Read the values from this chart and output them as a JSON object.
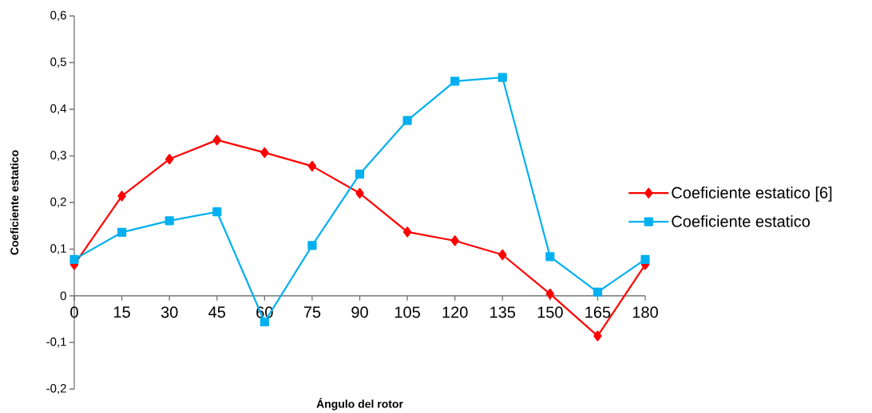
{
  "chart_data": {
    "type": "line",
    "xlabel": "Ángulo del rotor",
    "ylabel": "Coeficiente estatico",
    "x": [
      0,
      15,
      30,
      45,
      60,
      75,
      90,
      105,
      120,
      135,
      150,
      165,
      180
    ],
    "series": [
      {
        "name": "Coeficiente estatico [6]",
        "color": "#ff0000",
        "marker": "diamond",
        "values": [
          0.067,
          0.214,
          0.293,
          0.334,
          0.307,
          0.278,
          0.22,
          0.137,
          0.118,
          0.088,
          0.004,
          -0.086,
          0.067
        ]
      },
      {
        "name": "Coeficiente estatico",
        "color": "#00b0f0",
        "marker": "square",
        "values": [
          0.078,
          0.136,
          0.161,
          0.18,
          -0.056,
          0.108,
          0.261,
          0.376,
          0.46,
          0.468,
          0.084,
          0.008,
          0.078
        ]
      }
    ],
    "xlim": [
      0,
      180
    ],
    "ylim": [
      -0.2,
      0.6
    ],
    "xticks": [
      0,
      15,
      30,
      45,
      60,
      75,
      90,
      105,
      120,
      135,
      150,
      165,
      180
    ],
    "yticks": [
      {
        "value": -0.2,
        "label": "-0,2"
      },
      {
        "value": -0.1,
        "label": "-0,1"
      },
      {
        "value": 0,
        "label": "0"
      },
      {
        "value": 0.1,
        "label": "0,1"
      },
      {
        "value": 0.2,
        "label": "0,2"
      },
      {
        "value": 0.3,
        "label": "0,3"
      },
      {
        "value": 0.4,
        "label": "0,4"
      },
      {
        "value": 0.5,
        "label": "0,5"
      },
      {
        "value": 0.6,
        "label": "0,6"
      }
    ],
    "legend": "right",
    "grid": false,
    "line_style": "solid"
  }
}
